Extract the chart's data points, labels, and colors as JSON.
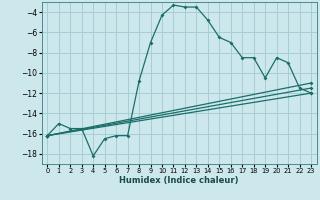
{
  "title": "",
  "xlabel": "Humidex (Indice chaleur)",
  "background_color": "#cde8ec",
  "grid_color": "#a8cdd4",
  "line_color": "#1a6e6a",
  "xlim": [
    -0.5,
    23.5
  ],
  "ylim": [
    -19,
    -3
  ],
  "xticks": [
    0,
    1,
    2,
    3,
    4,
    5,
    6,
    7,
    8,
    9,
    10,
    11,
    12,
    13,
    14,
    15,
    16,
    17,
    18,
    19,
    20,
    21,
    22,
    23
  ],
  "yticks": [
    -18,
    -16,
    -14,
    -12,
    -10,
    -8,
    -6,
    -4
  ],
  "series0": {
    "x": [
      0,
      1,
      2,
      3,
      4,
      5,
      6,
      7,
      8,
      9,
      10,
      11,
      12,
      13,
      14,
      15,
      16,
      17,
      18,
      19,
      20,
      21,
      22,
      23
    ],
    "y": [
      -16.2,
      -15.0,
      -15.5,
      -15.5,
      -18.2,
      -16.5,
      -16.2,
      -16.2,
      -10.8,
      -7.0,
      -4.3,
      -3.3,
      -3.5,
      -3.5,
      -4.8,
      -6.5,
      -7.0,
      -8.5,
      -8.5,
      -10.5,
      -8.5,
      -9.0,
      -11.5,
      -12.0
    ]
  },
  "series_lines": [
    {
      "x": [
        0,
        23
      ],
      "y": [
        -16.2,
        -12.0
      ]
    },
    {
      "x": [
        0,
        23
      ],
      "y": [
        -16.2,
        -11.5
      ]
    },
    {
      "x": [
        0,
        23
      ],
      "y": [
        -16.2,
        -11.0
      ]
    }
  ]
}
